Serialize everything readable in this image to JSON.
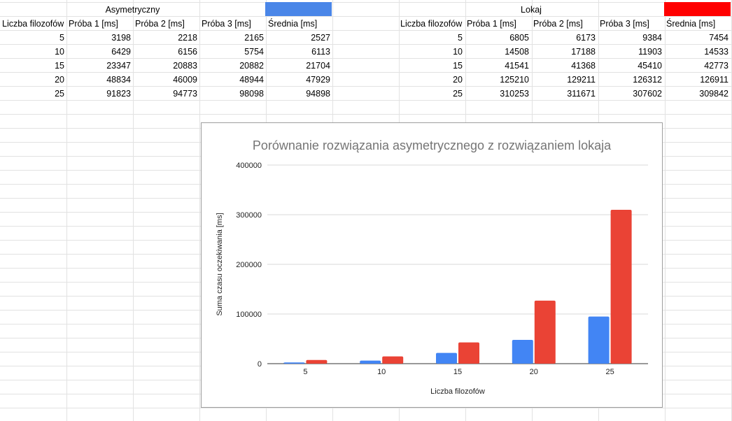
{
  "sheet": {
    "asym": {
      "header": "Asymetryczny",
      "swatch_color": "#4a86e8",
      "columns": [
        "Liczba filozofów",
        "Próba 1 [ms]",
        "Próba 2 [ms]",
        "Próba 3 [ms]",
        "Średnia [ms]"
      ],
      "rows": [
        [
          "5",
          "3198",
          "2218",
          "2165",
          "2527"
        ],
        [
          "10",
          "6429",
          "6156",
          "5754",
          "6113"
        ],
        [
          "15",
          "23347",
          "20883",
          "20882",
          "21704"
        ],
        [
          "20",
          "48834",
          "46009",
          "48944",
          "47929"
        ],
        [
          "25",
          "91823",
          "94773",
          "98098",
          "94898"
        ]
      ]
    },
    "lokaj": {
      "header": "Lokaj",
      "swatch_color": "#ff0000",
      "columns": [
        "Liczba filozofów",
        "Próba 1 [ms]",
        "Próba 2 [ms]",
        "Próba 3 [ms]",
        "Średnia [ms]"
      ],
      "rows": [
        [
          "5",
          "6805",
          "6173",
          "9384",
          "7454"
        ],
        [
          "10",
          "14508",
          "17188",
          "11903",
          "14533"
        ],
        [
          "15",
          "41541",
          "41368",
          "45410",
          "42773"
        ],
        [
          "20",
          "125210",
          "129211",
          "126312",
          "126911"
        ],
        [
          "25",
          "310253",
          "311671",
          "307602",
          "309842"
        ]
      ]
    }
  },
  "chart_data": {
    "type": "bar",
    "title": "Porównanie rozwiązania asymetrycznego z rozwiązaniem lokaja",
    "xlabel": "Liczba filozofów",
    "ylabel": "Suma czasu oczekiwania [ms]",
    "categories": [
      "5",
      "10",
      "15",
      "20",
      "25"
    ],
    "series": [
      {
        "values": [
          2527,
          6113,
          21704,
          47929,
          94898
        ],
        "color": "#4285f4"
      },
      {
        "values": [
          7454,
          14533,
          42773,
          126911,
          309842
        ],
        "color": "#ea4335"
      }
    ],
    "ylim": [
      0,
      400000
    ],
    "yticks": [
      0,
      100000,
      200000,
      300000,
      400000
    ],
    "grid": true,
    "legend": "none"
  }
}
